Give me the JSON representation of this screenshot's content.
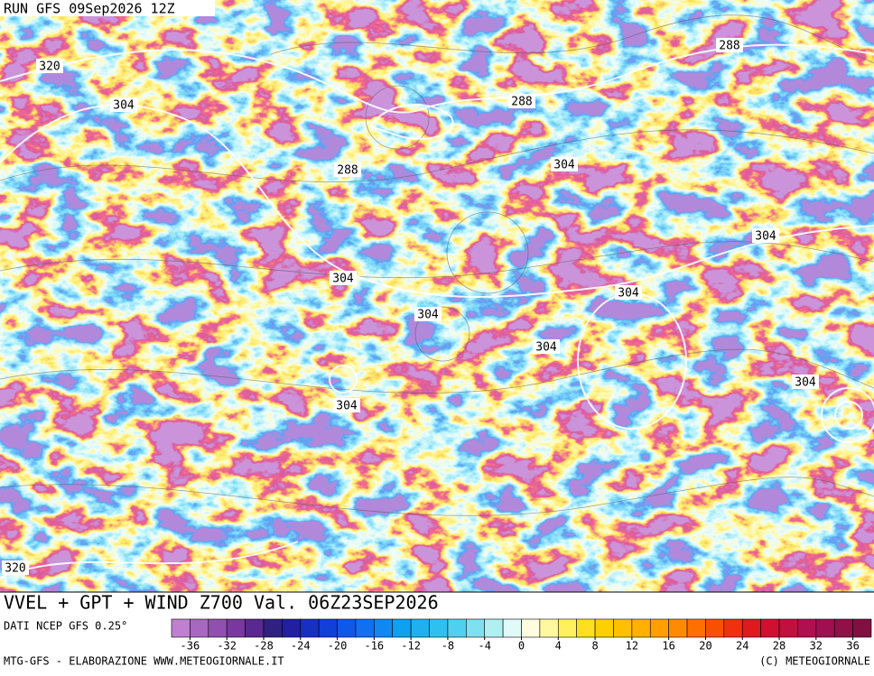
{
  "header": {
    "run": "RUN GFS 09Sep2026 12Z"
  },
  "map": {
    "contour_labels": [
      320,
      304,
      288,
      288,
      304,
      288,
      304,
      304,
      304,
      304,
      304,
      304,
      304,
      320
    ]
  },
  "footer": {
    "title": "VVEL + GPT + WIND Z700 Val. 06Z23SEP2026",
    "source": "DATI NCEP GFS 0.25°",
    "credit": "MTG-GFS - ELABORAZIONE WWW.METEOGIORNALE.IT",
    "copyright": "(C) METEOGIORNALE"
  },
  "colorbar": {
    "lim": [
      -38,
      38
    ],
    "ticks": [
      -36,
      -32,
      -28,
      -24,
      -20,
      -16,
      -12,
      -8,
      -4,
      0,
      4,
      8,
      12,
      16,
      20,
      24,
      28,
      32,
      36
    ],
    "colors": [
      "#c080d0",
      "#a868c0",
      "#9050b0",
      "#7838a0",
      "#5a2890",
      "#302080",
      "#2020a0",
      "#1830c0",
      "#1040d8",
      "#1058e8",
      "#1070f0",
      "#1088f0",
      "#10a0f0",
      "#20b0f0",
      "#30c0f0",
      "#50d0f0",
      "#80e0f0",
      "#b0f0f0",
      "#e0fafa",
      "#fffde0",
      "#fff8a0",
      "#fff060",
      "#ffe020",
      "#ffd000",
      "#ffc000",
      "#ffb000",
      "#ffa000",
      "#ff8c00",
      "#ff7000",
      "#f85000",
      "#f03010",
      "#e01820",
      "#d01030",
      "#c01040",
      "#b01050",
      "#a01050",
      "#901048",
      "#801040"
    ]
  }
}
